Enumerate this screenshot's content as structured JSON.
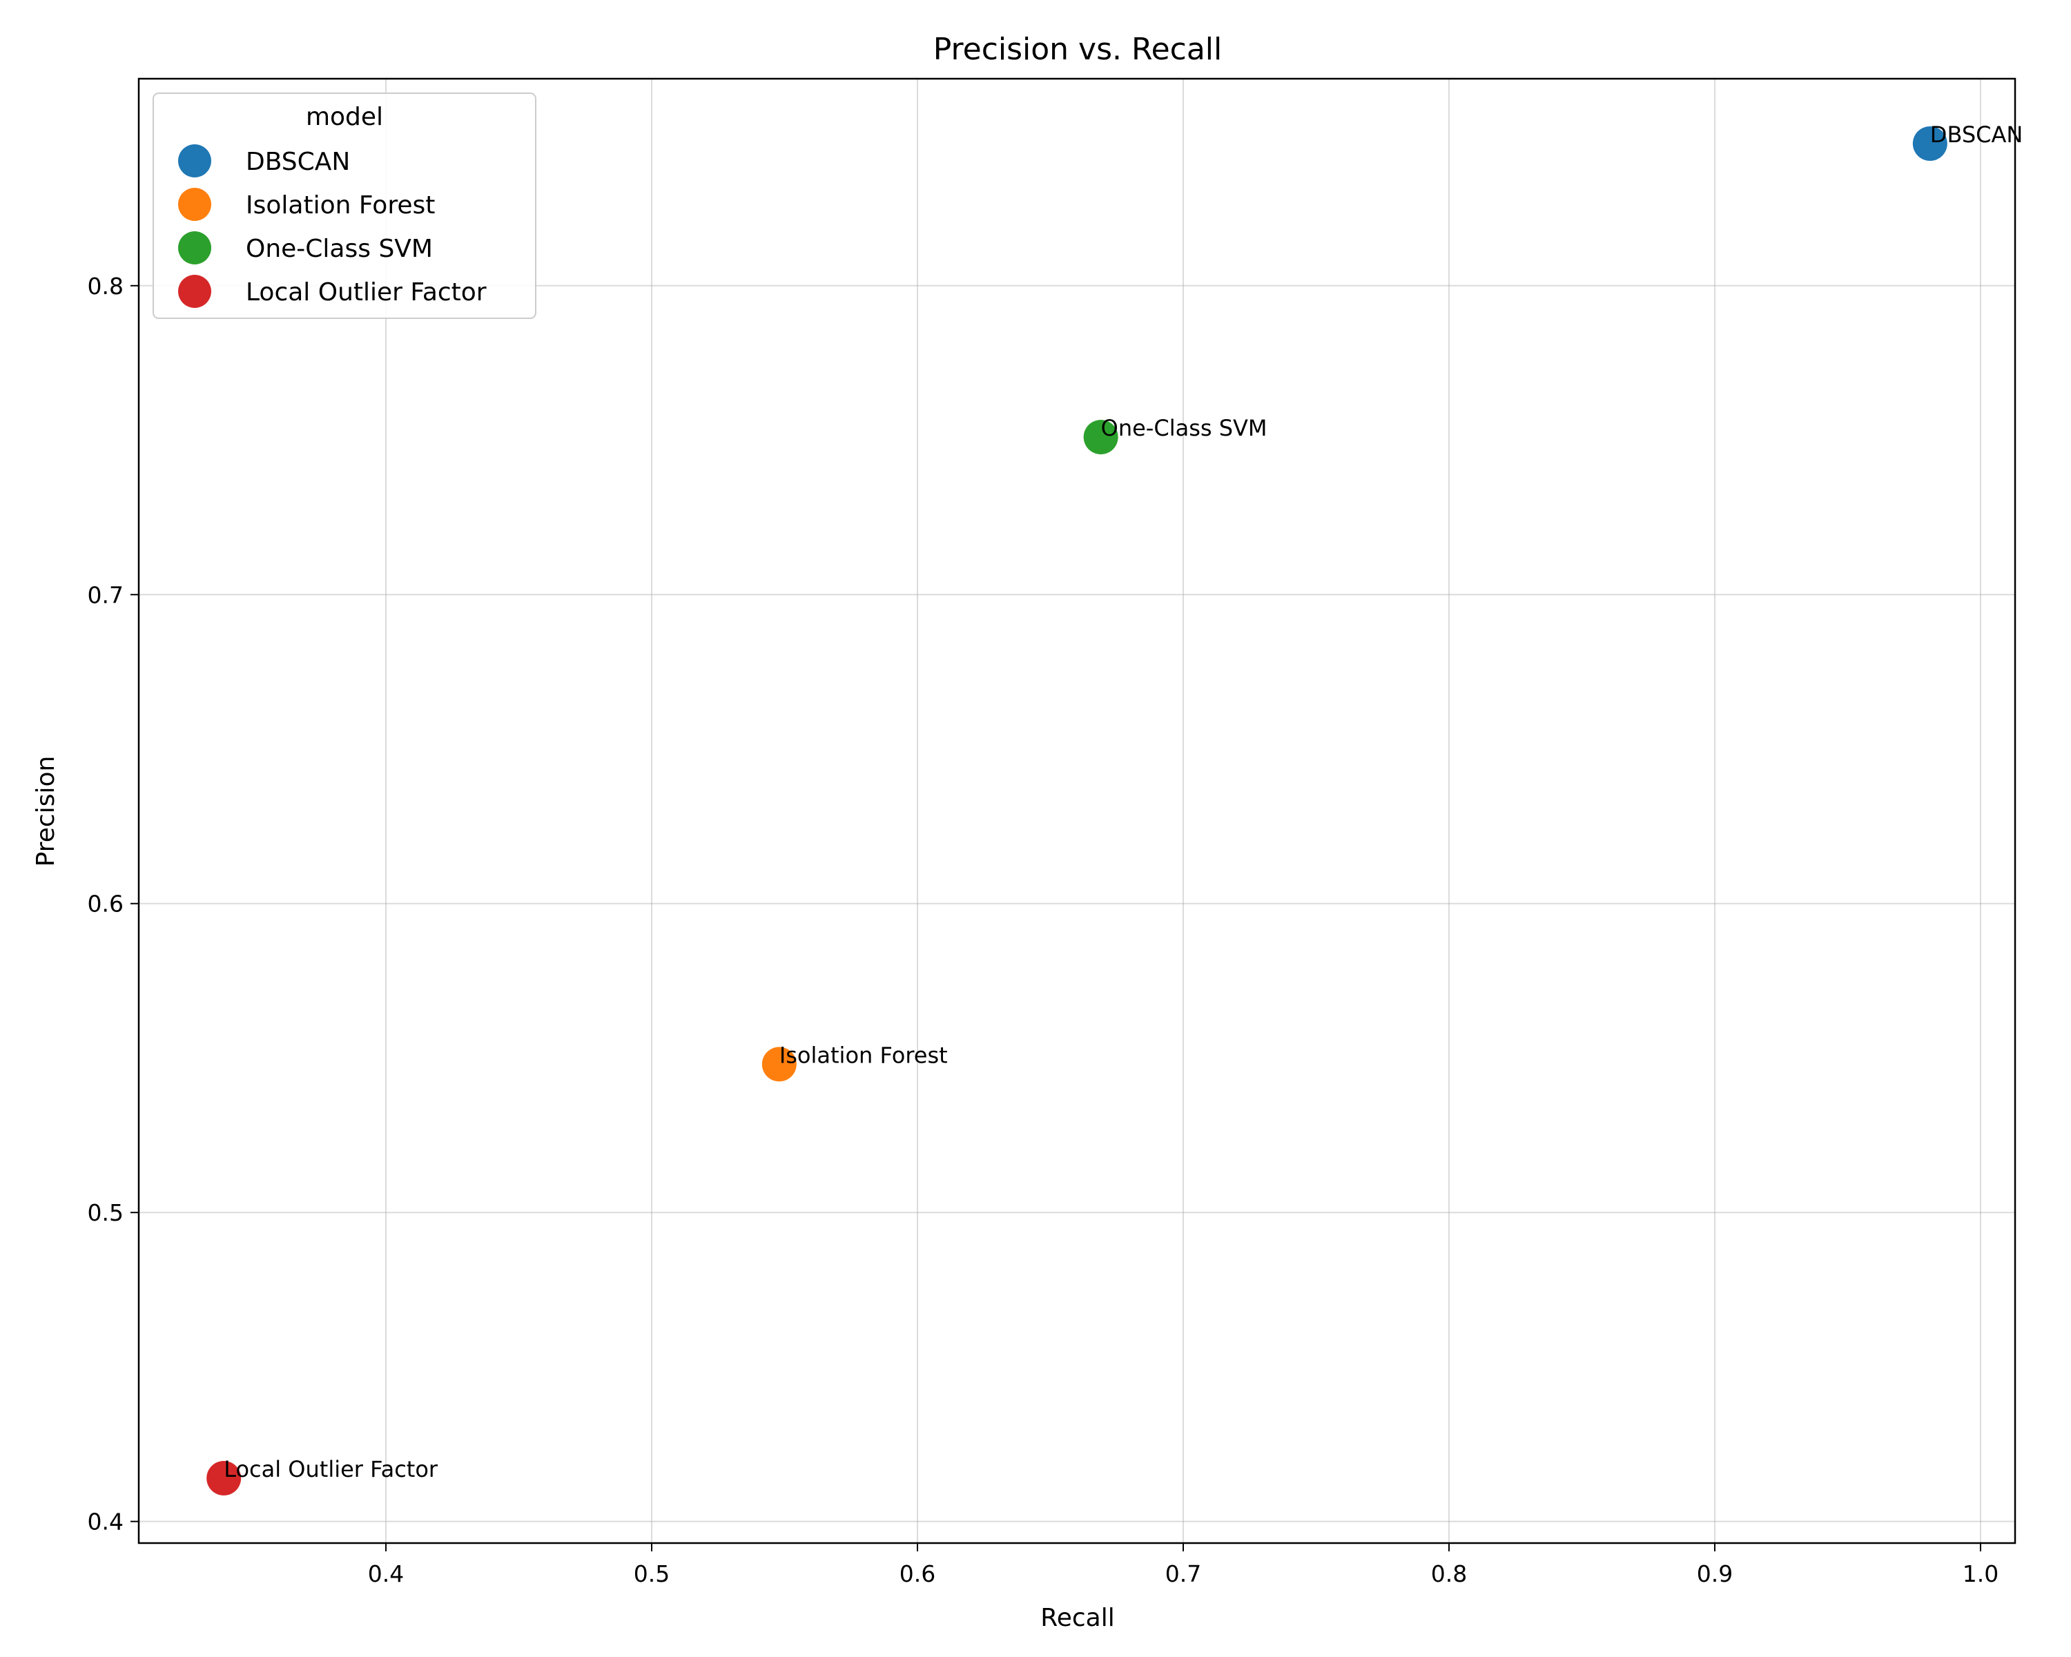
{
  "chart_data": {
    "type": "scatter",
    "title": "Precision vs. Recall",
    "xlabel": "Recall",
    "ylabel": "Precision",
    "xlim": [
      0.307,
      1.013
    ],
    "ylim": [
      0.393,
      0.867
    ],
    "xticks": [
      0.4,
      0.5,
      0.6,
      0.7,
      0.8,
      0.9,
      1.0
    ],
    "xtick_labels": [
      "0.4",
      "0.5",
      "0.6",
      "0.7",
      "0.8",
      "0.9",
      "1.0"
    ],
    "yticks": [
      0.4,
      0.5,
      0.6,
      0.7,
      0.8
    ],
    "ytick_labels": [
      "0.4",
      "0.5",
      "0.6",
      "0.7",
      "0.8"
    ],
    "grid": true,
    "legend": {
      "title": "model",
      "placement": "top-left"
    },
    "series": [
      {
        "name": "DBSCAN",
        "color": "#1f77b4",
        "x": [
          0.981
        ],
        "y": [
          0.846
        ],
        "label": "DBSCAN"
      },
      {
        "name": "Isolation Forest",
        "color": "#ff7f0e",
        "x": [
          0.548
        ],
        "y": [
          0.548
        ],
        "label": "Isolation Forest"
      },
      {
        "name": "One-Class SVM",
        "color": "#2ca02c",
        "x": [
          0.669
        ],
        "y": [
          0.751
        ],
        "label": "One-Class SVM"
      },
      {
        "name": "Local Outlier Factor",
        "color": "#d62728",
        "x": [
          0.339
        ],
        "y": [
          0.414
        ],
        "label": "Local Outlier Factor"
      }
    ]
  }
}
